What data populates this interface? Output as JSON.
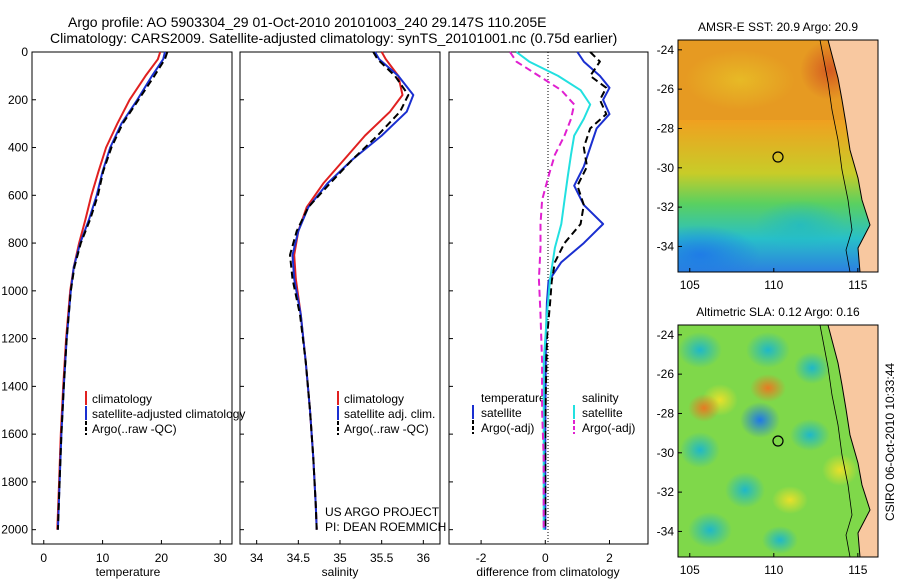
{
  "header": {
    "line1": "Argo profile: AO 5903304_29 01-Oct-2010 20101003_240 29.147S 110.205E",
    "line2": "Climatology: CARS2009. Satellite-adjusted climatology: synTS_20101001.nc (0.75d earlier)"
  },
  "project_note": {
    "line1": "US ARGO PROJECT",
    "line2": "PI: DEAN ROEMMICH"
  },
  "side_stamp": "CSIRO 06-Oct-2010 10:33:44",
  "colors": {
    "climatology": "#e02020",
    "satellite": "#1a2fd0",
    "argo": "#000000",
    "sat_salinity": "#22e0e0",
    "argo_salinity_diff": "#e020d0"
  },
  "chart_data": [
    {
      "type": "line",
      "name": "temperature-panel",
      "xlabel": "temperature",
      "ylabel": "",
      "xlim": [
        -2,
        32
      ],
      "ylim": [
        2060,
        0
      ],
      "xticks": [
        0,
        10,
        20,
        30
      ],
      "yticks": [
        0,
        200,
        400,
        600,
        800,
        1000,
        1200,
        1400,
        1600,
        1800,
        2000
      ],
      "legend": {
        "position": "lower-middle",
        "entries": [
          "climatology",
          "satellite-adjusted climatology",
          "Argo(..raw -QC)"
        ]
      },
      "series": [
        {
          "name": "climatology",
          "style": "solid",
          "color_key": "climatology",
          "depth": [
            0,
            30,
            100,
            200,
            300,
            400,
            500,
            600,
            700,
            800,
            900,
            1000,
            1200,
            1400,
            1600,
            1800,
            2000
          ],
          "values": [
            19.8,
            19.4,
            17.3,
            14.6,
            12.5,
            10.6,
            9.3,
            8.1,
            7.1,
            6.0,
            5.1,
            4.5,
            3.8,
            3.3,
            2.9,
            2.6,
            2.3
          ]
        },
        {
          "name": "satellite-adjusted climatology",
          "style": "solid",
          "color_key": "satellite",
          "depth": [
            0,
            30,
            100,
            200,
            300,
            400,
            500,
            600,
            700,
            800,
            900,
            1000,
            1200,
            1400,
            1600,
            1800,
            2000
          ],
          "values": [
            20.6,
            20.3,
            18.4,
            15.9,
            13.2,
            11.3,
            10.0,
            9.0,
            7.7,
            6.2,
            5.1,
            4.6,
            3.9,
            3.4,
            3.0,
            2.7,
            2.4
          ]
        },
        {
          "name": "Argo(..raw -QC)",
          "style": "dashed",
          "color_key": "argo",
          "depth": [
            0,
            30,
            100,
            200,
            300,
            400,
            500,
            600,
            700,
            800,
            900,
            1000,
            1200,
            1400,
            1600,
            1800,
            2000
          ],
          "values": [
            21.0,
            20.6,
            18.8,
            16.1,
            13.4,
            11.5,
            10.1,
            9.2,
            7.9,
            6.3,
            5.2,
            4.6,
            3.9,
            3.4,
            3.0,
            2.7,
            2.4
          ]
        }
      ]
    },
    {
      "type": "line",
      "name": "salinity-panel",
      "xlabel": "salinity",
      "ylabel": "",
      "xlim": [
        33.8,
        36.2
      ],
      "ylim": [
        2060,
        0
      ],
      "xticks": [
        34,
        34.5,
        35,
        35.5,
        36
      ],
      "legend": {
        "position": "lower-right",
        "entries": [
          "climatology",
          "satellite adj. clim.",
          "Argo(..raw -QC)"
        ]
      },
      "series": [
        {
          "name": "climatology",
          "style": "solid",
          "color_key": "climatology",
          "depth": [
            0,
            30,
            100,
            180,
            250,
            350,
            450,
            550,
            650,
            750,
            850,
            950,
            1100,
            1300,
            1500,
            1700,
            1900,
            2000
          ],
          "values": [
            35.5,
            35.55,
            35.7,
            35.75,
            35.6,
            35.3,
            35.05,
            34.8,
            34.6,
            34.5,
            34.45,
            34.47,
            34.53,
            34.59,
            34.64,
            34.68,
            34.71,
            34.72
          ]
        },
        {
          "name": "satellite adj. clim.",
          "style": "solid",
          "color_key": "satellite",
          "depth": [
            0,
            30,
            100,
            180,
            250,
            350,
            450,
            550,
            650,
            750,
            850,
            950,
            1100,
            1300,
            1500,
            1700,
            1900,
            2000
          ],
          "values": [
            35.42,
            35.47,
            35.7,
            35.88,
            35.8,
            35.5,
            35.15,
            34.85,
            34.62,
            34.5,
            34.43,
            34.45,
            34.53,
            34.59,
            34.64,
            34.68,
            34.71,
            34.72
          ]
        },
        {
          "name": "Argo(..raw -QC)",
          "style": "dashed",
          "color_key": "argo",
          "depth": [
            0,
            30,
            100,
            180,
            250,
            350,
            450,
            550,
            650,
            750,
            850,
            950,
            1100,
            1300,
            1500,
            1700,
            1900,
            2000
          ],
          "values": [
            35.4,
            35.45,
            35.66,
            35.82,
            35.72,
            35.45,
            35.15,
            34.88,
            34.62,
            34.48,
            34.4,
            34.43,
            34.52,
            34.59,
            34.64,
            34.68,
            34.71,
            34.72
          ]
        }
      ]
    },
    {
      "type": "line",
      "name": "difference-panel",
      "xlabel": "difference from climatology",
      "ylabel": "",
      "xlim": [
        -3,
        3.2
      ],
      "ylim": [
        2060,
        0
      ],
      "xticks": [
        -2,
        0,
        2
      ],
      "legend": {
        "position": "lower-middle",
        "entries": [
          "temperature",
          "satellite",
          "Argo(-adj)",
          "salinity",
          "satellite",
          "Argo(-adj)"
        ]
      },
      "series": [
        {
          "name": "temperature satellite",
          "style": "solid",
          "color_key": "satellite",
          "depth": [
            0,
            40,
            100,
            150,
            200,
            260,
            320,
            400,
            480,
            560,
            640,
            720,
            800,
            880,
            960,
            1050,
            1200,
            1400,
            1600,
            1800,
            2000
          ],
          "values": [
            1.0,
            1.2,
            1.7,
            2.0,
            1.8,
            2.0,
            1.6,
            1.4,
            1.2,
            0.9,
            1.2,
            1.8,
            1.2,
            0.5,
            0.1,
            0.05,
            0.02,
            0.01,
            0.0,
            0.0,
            0.0
          ]
        },
        {
          "name": "temperature Argo(-adj)",
          "style": "dashed",
          "color_key": "argo",
          "depth": [
            0,
            40,
            100,
            150,
            200,
            260,
            320,
            400,
            480,
            560,
            640,
            720,
            800,
            880,
            960,
            1050,
            1200,
            1400,
            1600,
            1800,
            2000
          ],
          "values": [
            1.4,
            1.7,
            1.4,
            1.9,
            1.7,
            1.9,
            1.4,
            1.2,
            1.3,
            1.0,
            1.2,
            1.1,
            0.6,
            0.3,
            0.2,
            0.15,
            0.05,
            0.02,
            0.0,
            0.0,
            0.0
          ]
        },
        {
          "name": "salinity satellite",
          "style": "solid",
          "color_key": "sat_salinity",
          "depth": [
            0,
            40,
            100,
            160,
            220,
            280,
            350,
            430,
            520,
            620,
            720,
            820,
            950,
            1100,
            1300,
            1500,
            1700,
            1900,
            2000
          ],
          "values": [
            -0.9,
            -0.5,
            0.4,
            1.1,
            1.4,
            1.2,
            0.9,
            0.8,
            0.7,
            0.6,
            0.5,
            0.3,
            0.15,
            0.05,
            -0.05,
            -0.05,
            -0.05,
            -0.05,
            -0.05
          ]
        },
        {
          "name": "salinity Argo(-adj)",
          "style": "dashed",
          "color_key": "argo_salinity_diff",
          "depth": [
            0,
            40,
            100,
            160,
            220,
            280,
            350,
            430,
            520,
            620,
            720,
            820,
            950,
            1100,
            1300,
            1500,
            1700,
            1900,
            2000
          ],
          "values": [
            -1.1,
            -0.9,
            -0.2,
            0.5,
            0.9,
            0.8,
            0.6,
            0.3,
            0.1,
            -0.1,
            -0.15,
            -0.15,
            -0.2,
            -0.15,
            -0.1,
            -0.1,
            -0.05,
            -0.05,
            -0.05
          ]
        }
      ]
    },
    {
      "type": "heatmap",
      "name": "sst-map",
      "title": "AMSR-E SST: 20.9 Argo: 20.9",
      "xticks": [
        105,
        110,
        115
      ],
      "yticks": [
        -24,
        -26,
        -28,
        -30,
        -32,
        -34
      ]
    },
    {
      "type": "heatmap",
      "name": "sla-map",
      "title": "Altimetric SLA: 0.12 Argo: 0.16",
      "xticks": [
        105,
        110,
        115
      ],
      "yticks": [
        -24,
        -26,
        -28,
        -30,
        -32,
        -34
      ]
    }
  ]
}
